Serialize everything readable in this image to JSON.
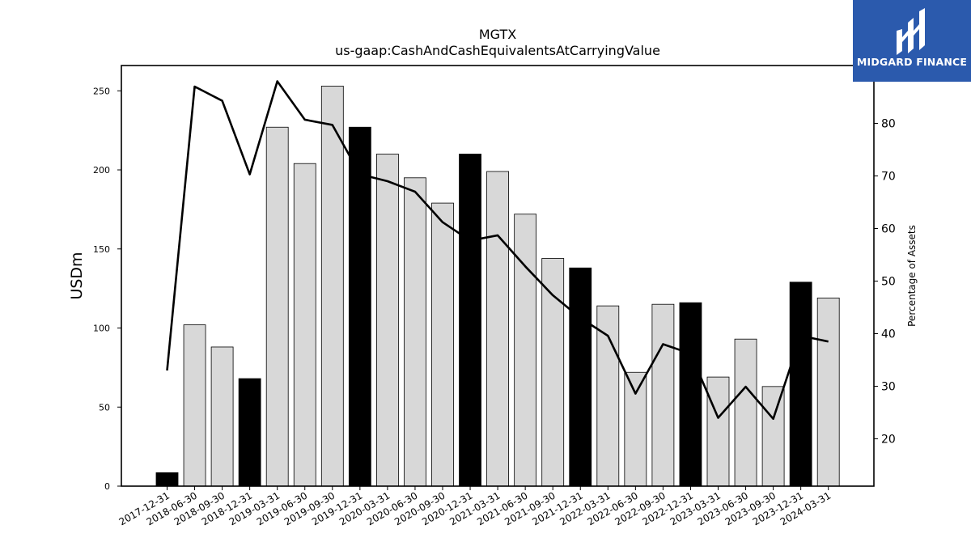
{
  "brand": {
    "name": "MIDGARD FINANCE",
    "logo_color": "#2b5aad"
  },
  "chart_data": {
    "type": "bar+line",
    "title": "MGTX",
    "subtitle": "us-gaap:CashAndCashEquivalentsAtCarryingValue",
    "ylabel": "USDm",
    "y2label": "Percentage of Assets",
    "ylim": [
      0,
      266
    ],
    "y2lim": [
      11,
      91
    ],
    "yticks": [
      0,
      50,
      100,
      150,
      200,
      250
    ],
    "y2ticks": [
      20,
      30,
      40,
      50,
      60,
      70,
      80
    ],
    "categories": [
      "2017-12-31",
      "2018-06-30",
      "2018-09-30",
      "2018-12-31",
      "2019-03-31",
      "2019-06-30",
      "2019-09-30",
      "2019-12-31",
      "2020-03-31",
      "2020-06-30",
      "2020-09-30",
      "2020-12-31",
      "2021-03-31",
      "2021-06-30",
      "2021-09-30",
      "2021-12-31",
      "2022-03-31",
      "2022-06-30",
      "2022-09-30",
      "2022-12-31",
      "2023-03-31",
      "2023-06-30",
      "2023-09-30",
      "2023-12-31",
      "2024-03-31"
    ],
    "series": [
      {
        "type": "bar",
        "values": [
          8.5,
          102,
          88,
          68,
          227,
          204,
          253,
          227,
          210,
          195,
          179,
          210,
          199,
          172,
          144,
          138,
          114,
          72,
          115,
          116,
          69,
          93,
          63,
          129,
          119
        ],
        "annual_flags": [
          true,
          false,
          false,
          true,
          false,
          false,
          false,
          true,
          false,
          false,
          false,
          true,
          false,
          false,
          false,
          true,
          false,
          false,
          false,
          true,
          false,
          false,
          false,
          true,
          false
        ]
      },
      {
        "type": "line",
        "axis": "right",
        "values": [
          33,
          87,
          84.3,
          70.3,
          88,
          80.7,
          79.7,
          70.3,
          69,
          67,
          61.2,
          57.7,
          58.7,
          52.8,
          47.3,
          43,
          39.6,
          28.6,
          38,
          36.2,
          24,
          29.9,
          23.8,
          39.6,
          38.5
        ]
      }
    ],
    "colors": {
      "annual_bar": "#000000",
      "quarter_bar": "#d8d8d8",
      "line": "#000000"
    }
  }
}
